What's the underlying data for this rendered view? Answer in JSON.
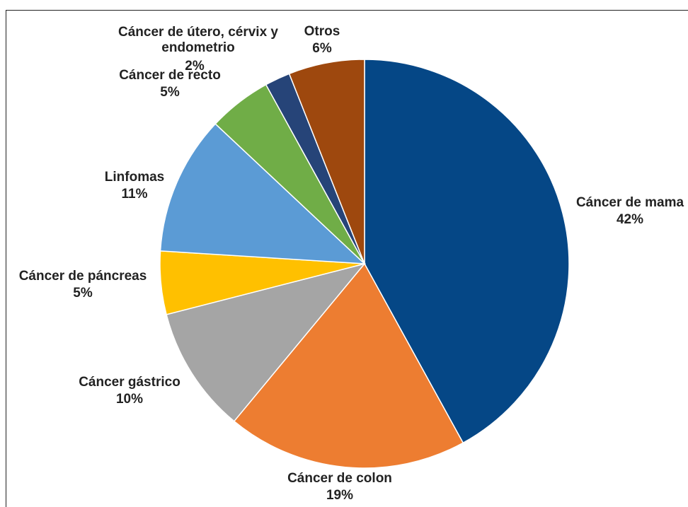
{
  "chart_data": {
    "type": "pie",
    "categories": [
      "Cáncer de mama",
      "Cáncer de colon",
      "Cáncer gástrico",
      "Cáncer de páncreas",
      "Linfomas",
      "Cáncer de recto",
      "Cáncer de útero, cérvix y endometrio",
      "Otros"
    ],
    "values": [
      42,
      19,
      10,
      5,
      11,
      5,
      2,
      6
    ],
    "value_labels": [
      "42%",
      "19%",
      "10%",
      "5%",
      "11%",
      "5%",
      "2%",
      "6%"
    ],
    "colors": [
      "#054786",
      "#ed7d31",
      "#a5a5a5",
      "#ffc000",
      "#5b9bd5",
      "#70ad47",
      "#264478",
      "#9e480e"
    ]
  }
}
